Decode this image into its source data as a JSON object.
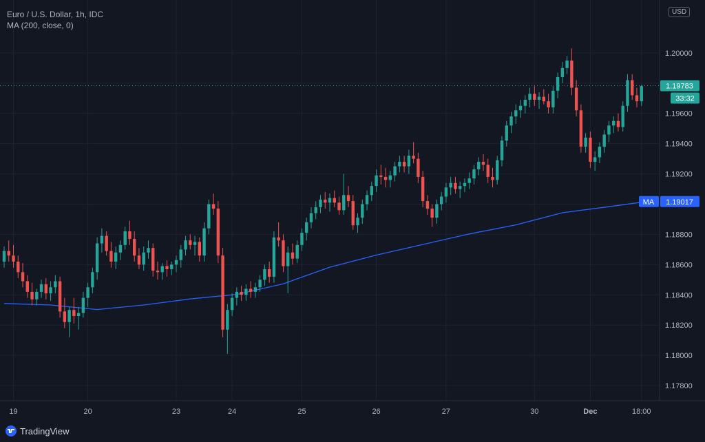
{
  "legend": {
    "title": "Euro / U.S. Dollar, 1h, IDC",
    "indicator": "MA (200, close, 0)"
  },
  "currency_button": "USD",
  "brand": "TradingView",
  "colors": {
    "background": "#131722",
    "up": "#26a69a",
    "down": "#ef5350",
    "ma": "#2962ff",
    "grid": "#1f2330",
    "axis_text": "#b2b5be"
  },
  "price_tag": {
    "value": "1.19783",
    "countdown": "33:32"
  },
  "ma_tag": {
    "label": "MA",
    "value": "1.19017"
  },
  "icons": {
    "brand": "tradingview-logo-icon"
  },
  "chart_data": {
    "type": "candlestick",
    "title": "Euro / U.S. Dollar, 1h, IDC",
    "y_range": [
      1.177,
      1.2035
    ],
    "x_range": [
      0,
      140
    ],
    "y_ticks": [
      "1.17800",
      "1.18000",
      "1.18200",
      "1.18400",
      "1.18600",
      "1.18800",
      "1.19000",
      "1.19200",
      "1.19400",
      "1.19600",
      "1.19800",
      "1.20000"
    ],
    "x_ticks": [
      {
        "label": "19",
        "x": 2
      },
      {
        "label": "20",
        "x": 18
      },
      {
        "label": "23",
        "x": 37
      },
      {
        "label": "24",
        "x": 49
      },
      {
        "label": "25",
        "x": 64
      },
      {
        "label": "26",
        "x": 80
      },
      {
        "label": "27",
        "x": 95
      },
      {
        "label": "30",
        "x": 114
      },
      {
        "label": "Dec",
        "x": 126
      },
      {
        "label": "18:00",
        "x": 137
      }
    ],
    "grid": true,
    "last_price": 1.19783,
    "candles": [
      [
        1.1862,
        1.1872,
        1.1858,
        1.1869
      ],
      [
        1.1869,
        1.1876,
        1.1862,
        1.1866
      ],
      [
        1.1866,
        1.1873,
        1.1858,
        1.1862
      ],
      [
        1.1862,
        1.1866,
        1.1851,
        1.1855
      ],
      [
        1.1855,
        1.1861,
        1.1845,
        1.1849
      ],
      [
        1.1849,
        1.1853,
        1.1838,
        1.1842
      ],
      [
        1.1842,
        1.1848,
        1.1833,
        1.1837
      ],
      [
        1.1837,
        1.1844,
        1.1833,
        1.1842
      ],
      [
        1.1842,
        1.185,
        1.1838,
        1.1847
      ],
      [
        1.1847,
        1.1851,
        1.1837,
        1.1841
      ],
      [
        1.1841,
        1.1849,
        1.1836,
        1.1845
      ],
      [
        1.1845,
        1.1853,
        1.1841,
        1.1849
      ],
      [
        1.1849,
        1.1852,
        1.1825,
        1.1829
      ],
      [
        1.1829,
        1.1838,
        1.1818,
        1.1822
      ],
      [
        1.1822,
        1.1832,
        1.1812,
        1.183
      ],
      [
        1.183,
        1.1838,
        1.1821,
        1.1826
      ],
      [
        1.1826,
        1.1832,
        1.1817,
        1.1828
      ],
      [
        1.1828,
        1.1842,
        1.1825,
        1.1838
      ],
      [
        1.1838,
        1.1848,
        1.1832,
        1.1845
      ],
      [
        1.1845,
        1.1858,
        1.1841,
        1.1855
      ],
      [
        1.1855,
        1.1878,
        1.185,
        1.1874
      ],
      [
        1.1874,
        1.1884,
        1.1868,
        1.1879
      ],
      [
        1.1879,
        1.1882,
        1.1866,
        1.1869
      ],
      [
        1.1869,
        1.1875,
        1.1858,
        1.1862
      ],
      [
        1.1862,
        1.1872,
        1.1857,
        1.1868
      ],
      [
        1.1868,
        1.1876,
        1.1863,
        1.1873
      ],
      [
        1.1873,
        1.1885,
        1.187,
        1.1882
      ],
      [
        1.1882,
        1.1889,
        1.1873,
        1.1877
      ],
      [
        1.1877,
        1.1882,
        1.1862,
        1.1866
      ],
      [
        1.1866,
        1.1871,
        1.1857,
        1.186
      ],
      [
        1.186,
        1.1872,
        1.1856,
        1.1868
      ],
      [
        1.1868,
        1.1876,
        1.1864,
        1.1871
      ],
      [
        1.1871,
        1.1874,
        1.1852,
        1.1856
      ],
      [
        1.1856,
        1.1862,
        1.185,
        1.1855
      ],
      [
        1.1855,
        1.1861,
        1.185,
        1.1859
      ],
      [
        1.1859,
        1.1863,
        1.1852,
        1.1857
      ],
      [
        1.1857,
        1.1862,
        1.1853,
        1.186
      ],
      [
        1.186,
        1.1866,
        1.1855,
        1.1863
      ],
      [
        1.1863,
        1.1873,
        1.1858,
        1.187
      ],
      [
        1.187,
        1.1879,
        1.1866,
        1.1876
      ],
      [
        1.1876,
        1.188,
        1.187,
        1.1873
      ],
      [
        1.1873,
        1.1879,
        1.1866,
        1.1875
      ],
      [
        1.1875,
        1.1878,
        1.1862,
        1.1866
      ],
      [
        1.1866,
        1.1888,
        1.1862,
        1.1884
      ],
      [
        1.1884,
        1.1903,
        1.188,
        1.19
      ],
      [
        1.19,
        1.1907,
        1.1893,
        1.1897
      ],
      [
        1.1897,
        1.1902,
        1.1861,
        1.1866
      ],
      [
        1.1866,
        1.1871,
        1.1812,
        1.1817
      ],
      [
        1.1817,
        1.1834,
        1.1801,
        1.183
      ],
      [
        1.183,
        1.1841,
        1.1826,
        1.1838
      ],
      [
        1.1838,
        1.1845,
        1.1833,
        1.1842
      ],
      [
        1.1842,
        1.1846,
        1.1836,
        1.184
      ],
      [
        1.184,
        1.1847,
        1.1836,
        1.1844
      ],
      [
        1.1844,
        1.1849,
        1.1838,
        1.1842
      ],
      [
        1.1842,
        1.1848,
        1.1838,
        1.1845
      ],
      [
        1.1845,
        1.1853,
        1.1842,
        1.185
      ],
      [
        1.185,
        1.186,
        1.1846,
        1.1857
      ],
      [
        1.1857,
        1.1862,
        1.1848,
        1.1852
      ],
      [
        1.1852,
        1.1882,
        1.1848,
        1.1878
      ],
      [
        1.1878,
        1.1888,
        1.1872,
        1.1876
      ],
      [
        1.1876,
        1.188,
        1.1855,
        1.1859
      ],
      [
        1.1859,
        1.1872,
        1.1841,
        1.1868
      ],
      [
        1.1868,
        1.1874,
        1.186,
        1.1864
      ],
      [
        1.1864,
        1.1876,
        1.1861,
        1.1873
      ],
      [
        1.1873,
        1.1884,
        1.1869,
        1.1881
      ],
      [
        1.1881,
        1.1891,
        1.1876,
        1.1888
      ],
      [
        1.1888,
        1.1898,
        1.1884,
        1.1894
      ],
      [
        1.1894,
        1.1902,
        1.189,
        1.1898
      ],
      [
        1.1898,
        1.1906,
        1.1894,
        1.1903
      ],
      [
        1.1903,
        1.1908,
        1.1897,
        1.1901
      ],
      [
        1.1901,
        1.1907,
        1.1895,
        1.1904
      ],
      [
        1.1904,
        1.1909,
        1.1898,
        1.1901
      ],
      [
        1.1901,
        1.1905,
        1.1893,
        1.1896
      ],
      [
        1.1896,
        1.192,
        1.1893,
        1.1906
      ],
      [
        1.1906,
        1.1912,
        1.1898,
        1.1902
      ],
      [
        1.1902,
        1.1906,
        1.1883,
        1.1886
      ],
      [
        1.1886,
        1.1894,
        1.1881,
        1.1891
      ],
      [
        1.1891,
        1.1903,
        1.1887,
        1.19
      ],
      [
        1.19,
        1.1909,
        1.1896,
        1.1906
      ],
      [
        1.1906,
        1.1915,
        1.1902,
        1.1912
      ],
      [
        1.1912,
        1.1923,
        1.1908,
        1.1919
      ],
      [
        1.1919,
        1.1926,
        1.1913,
        1.1918
      ],
      [
        1.1918,
        1.1924,
        1.1911,
        1.1916
      ],
      [
        1.1916,
        1.1922,
        1.1911,
        1.1919
      ],
      [
        1.1919,
        1.1928,
        1.1915,
        1.1925
      ],
      [
        1.1925,
        1.1932,
        1.1921,
        1.1928
      ],
      [
        1.1928,
        1.1932,
        1.1921,
        1.1925
      ],
      [
        1.1925,
        1.1936,
        1.192,
        1.1932
      ],
      [
        1.1932,
        1.1941,
        1.1927,
        1.193
      ],
      [
        1.193,
        1.1934,
        1.1914,
        1.1918
      ],
      [
        1.1918,
        1.1922,
        1.1898,
        1.1902
      ],
      [
        1.1902,
        1.1906,
        1.1893,
        1.1897
      ],
      [
        1.1897,
        1.19,
        1.1885,
        1.1891
      ],
      [
        1.1891,
        1.1903,
        1.1887,
        1.19
      ],
      [
        1.19,
        1.1908,
        1.1896,
        1.1905
      ],
      [
        1.1905,
        1.1914,
        1.1901,
        1.1911
      ],
      [
        1.1911,
        1.1918,
        1.1906,
        1.1914
      ],
      [
        1.1914,
        1.1918,
        1.1907,
        1.191
      ],
      [
        1.191,
        1.1915,
        1.1904,
        1.1912
      ],
      [
        1.1912,
        1.1917,
        1.1908,
        1.1914
      ],
      [
        1.1914,
        1.1921,
        1.191,
        1.1917
      ],
      [
        1.1917,
        1.1926,
        1.1913,
        1.1923
      ],
      [
        1.1923,
        1.1931,
        1.1919,
        1.1928
      ],
      [
        1.1928,
        1.1933,
        1.1922,
        1.1926
      ],
      [
        1.1926,
        1.193,
        1.1914,
        1.1918
      ],
      [
        1.1918,
        1.1924,
        1.1911,
        1.1916
      ],
      [
        1.1916,
        1.1932,
        1.1913,
        1.1929
      ],
      [
        1.1929,
        1.1945,
        1.1925,
        1.1942
      ],
      [
        1.1942,
        1.1955,
        1.1938,
        1.1952
      ],
      [
        1.1952,
        1.1961,
        1.1947,
        1.1958
      ],
      [
        1.1958,
        1.1966,
        1.1953,
        1.1962
      ],
      [
        1.1962,
        1.1969,
        1.1957,
        1.1965
      ],
      [
        1.1965,
        1.1972,
        1.196,
        1.1969
      ],
      [
        1.1969,
        1.1977,
        1.1964,
        1.1973
      ],
      [
        1.1973,
        1.1978,
        1.1965,
        1.1969
      ],
      [
        1.1969,
        1.1974,
        1.1963,
        1.1971
      ],
      [
        1.1971,
        1.1976,
        1.1966,
        1.1968
      ],
      [
        1.1968,
        1.1973,
        1.196,
        1.1964
      ],
      [
        1.1964,
        1.1978,
        1.196,
        1.1975
      ],
      [
        1.1975,
        1.1987,
        1.197,
        1.1984
      ],
      [
        1.1984,
        1.1994,
        1.198,
        1.199
      ],
      [
        1.199,
        1.1998,
        1.1986,
        1.1995
      ],
      [
        1.1995,
        1.2003,
        1.1972,
        1.1977
      ],
      [
        1.1977,
        1.1982,
        1.1958,
        1.1962
      ],
      [
        1.1962,
        1.1966,
        1.1934,
        1.1938
      ],
      [
        1.1938,
        1.1947,
        1.1934,
        1.1944
      ],
      [
        1.1944,
        1.1948,
        1.1924,
        1.1928
      ],
      [
        1.1928,
        1.1935,
        1.1922,
        1.1931
      ],
      [
        1.1931,
        1.1941,
        1.1927,
        1.1938
      ],
      [
        1.1938,
        1.1949,
        1.1934,
        1.1946
      ],
      [
        1.1946,
        1.1955,
        1.1941,
        1.1952
      ],
      [
        1.1952,
        1.1958,
        1.1947,
        1.1955
      ],
      [
        1.1955,
        1.196,
        1.1948,
        1.1951
      ],
      [
        1.1951,
        1.1968,
        1.1948,
        1.1965
      ],
      [
        1.1965,
        1.1986,
        1.1961,
        1.1982
      ],
      [
        1.1982,
        1.1986,
        1.1969,
        1.1972
      ],
      [
        1.1972,
        1.1977,
        1.1964,
        1.1968
      ],
      [
        1.1968,
        1.1979,
        1.1965,
        1.1978
      ]
    ],
    "ma_line": [
      [
        0,
        1.18343
      ],
      [
        10,
        1.18333
      ],
      [
        20,
        1.18303
      ],
      [
        30,
        1.18333
      ],
      [
        40,
        1.18373
      ],
      [
        50,
        1.18403
      ],
      [
        60,
        1.18473
      ],
      [
        70,
        1.18583
      ],
      [
        80,
        1.18663
      ],
      [
        90,
        1.18733
      ],
      [
        100,
        1.18803
      ],
      [
        110,
        1.18863
      ],
      [
        120,
        1.18943
      ],
      [
        130,
        1.18983
      ],
      [
        138,
        1.19017
      ]
    ]
  }
}
